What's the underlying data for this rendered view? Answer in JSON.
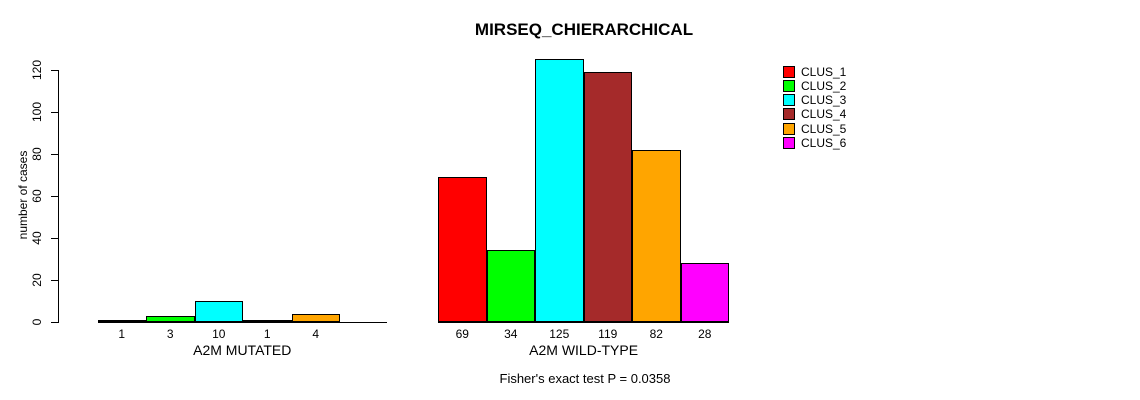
{
  "chart_data": {
    "type": "bar",
    "title": "MIRSEQ_CHIERARCHICAL",
    "ylabel": "number of cases",
    "ylim": [
      0,
      120
    ],
    "yticks": [
      0,
      20,
      40,
      60,
      80,
      100,
      120
    ],
    "grid": false,
    "legend_position": "right",
    "legend": [
      {
        "label": "CLUS_1",
        "color": "#FF0000"
      },
      {
        "label": "CLUS_2",
        "color": "#00FF00"
      },
      {
        "label": "CLUS_3",
        "color": "#00FFFF"
      },
      {
        "label": "CLUS_4",
        "color": "#A52A2A"
      },
      {
        "label": "CLUS_5",
        "color": "#FFA500"
      },
      {
        "label": "CLUS_6",
        "color": "#FF00FF"
      }
    ],
    "groups": [
      {
        "label": "A2M MUTATED",
        "bars": [
          {
            "cluster": "CLUS_1",
            "value": 1,
            "color": "#FF0000"
          },
          {
            "cluster": "CLUS_2",
            "value": 3,
            "color": "#00FF00"
          },
          {
            "cluster": "CLUS_3",
            "value": 10,
            "color": "#00FFFF"
          },
          {
            "cluster": "CLUS_4",
            "value": 1,
            "color": "#A52A2A"
          },
          {
            "cluster": "CLUS_5",
            "value": 4,
            "color": "#FFA500"
          }
        ]
      },
      {
        "label": "A2M WILD-TYPE",
        "bars": [
          {
            "cluster": "CLUS_1",
            "value": 69,
            "color": "#FF0000"
          },
          {
            "cluster": "CLUS_2",
            "value": 34,
            "color": "#00FF00"
          },
          {
            "cluster": "CLUS_3",
            "value": 125,
            "color": "#00FFFF"
          },
          {
            "cluster": "CLUS_4",
            "value": 119,
            "color": "#A52A2A"
          },
          {
            "cluster": "CLUS_5",
            "value": 82,
            "color": "#FFA500"
          },
          {
            "cluster": "CLUS_6",
            "value": 28,
            "color": "#FF00FF"
          }
        ]
      }
    ],
    "footnote": "Fisher's exact test P = 0.0358"
  }
}
